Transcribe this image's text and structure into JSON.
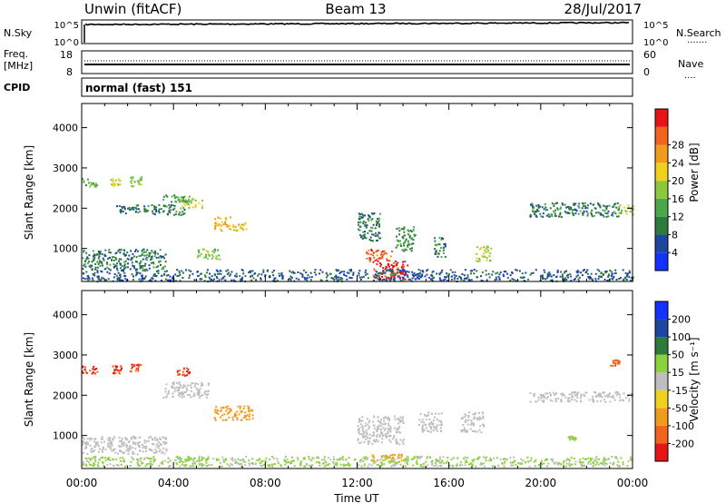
{
  "header": {
    "station": "Unwin (fitACF)",
    "beam": "Beam 13",
    "date": "28/Jul/2017"
  },
  "noise_panel": {
    "left_label": "N.Sky",
    "left_ticks": [
      "10^5",
      "10^0"
    ],
    "right_ticks": [
      "10^5",
      "10^0"
    ],
    "right_label": "N.Search",
    "right_legend": "......."
  },
  "freq_panel": {
    "left_label_1": "Freq.",
    "left_label_2": "[MHz]",
    "left_ticks": [
      "18",
      "8"
    ],
    "right_ticks": [
      "60",
      "0"
    ],
    "right_label": "Nave",
    "right_legend": "...."
  },
  "cpid_panel": {
    "left_label": "CPID",
    "text": "normal (fast) 151"
  },
  "time_axis": {
    "label": "Time UT",
    "tick_labels": [
      "00:00",
      "04:00",
      "08:00",
      "12:00",
      "16:00",
      "20:00",
      "00:00"
    ]
  },
  "colors": {
    "power": [
      "#1432ff",
      "#1e46a0",
      "#2c7a3c",
      "#4aa84a",
      "#8cc83c",
      "#f0d21e",
      "#f09b1e",
      "#f0641e",
      "#e61414"
    ],
    "velocity": [
      "#e61414",
      "#f0641e",
      "#f09b1e",
      "#f0d21e",
      "#bebebe",
      "#8cd23c",
      "#2c7a3c",
      "#1e46a0",
      "#1432ff"
    ]
  },
  "chart_data": [
    {
      "type": "heatmap",
      "panel": "power",
      "ylabel": "Slant Range [km]",
      "xlabel": "",
      "ylim": [
        180,
        4600
      ],
      "yticks": [
        1000,
        2000,
        3000,
        4000
      ],
      "x_ticks": [
        "00:00",
        "04:00",
        "08:00",
        "12:00",
        "16:00",
        "20:00",
        "00:00"
      ],
      "colorbar": {
        "label": "Power [dB]",
        "tick_labels": [
          "4",
          "8",
          "12",
          "16",
          "20",
          "24",
          "28"
        ],
        "range": [
          0,
          30
        ]
      },
      "regions": [
        {
          "start": "00:00",
          "end": "00:40",
          "range_km": [
            2550,
            2750
          ],
          "value": 12
        },
        {
          "start": "01:15",
          "end": "01:45",
          "range_km": [
            2550,
            2750
          ],
          "value": 16
        },
        {
          "start": "02:05",
          "end": "02:35",
          "range_km": [
            2550,
            2800
          ],
          "value": 14
        },
        {
          "start": "03:30",
          "end": "04:40",
          "range_km": [
            2150,
            2350
          ],
          "value": 10
        },
        {
          "start": "01:30",
          "end": "04:30",
          "range_km": [
            1850,
            2100
          ],
          "value": 8
        },
        {
          "start": "04:15",
          "end": "05:15",
          "range_km": [
            2000,
            2250
          ],
          "value": 16
        },
        {
          "start": "05:45",
          "end": "06:30",
          "range_km": [
            1450,
            1800
          ],
          "value": 20
        },
        {
          "start": "06:30",
          "end": "07:15",
          "range_km": [
            1450,
            1650
          ],
          "value": 18
        },
        {
          "start": "00:00",
          "end": "03:40",
          "range_km": [
            500,
            1000
          ],
          "value": 8
        },
        {
          "start": "05:00",
          "end": "06:00",
          "range_km": [
            750,
            1000
          ],
          "value": 14
        },
        {
          "start": "12:00",
          "end": "13:00",
          "range_km": [
            1200,
            1900
          ],
          "value": 8
        },
        {
          "start": "12:20",
          "end": "13:30",
          "range_km": [
            700,
            1000
          ],
          "value": 26
        },
        {
          "start": "12:40",
          "end": "14:10",
          "range_km": [
            250,
            700
          ],
          "value": 28
        },
        {
          "start": "13:40",
          "end": "14:30",
          "range_km": [
            950,
            1550
          ],
          "value": 10
        },
        {
          "start": "15:20",
          "end": "15:50",
          "range_km": [
            800,
            1300
          ],
          "value": 8
        },
        {
          "start": "17:10",
          "end": "17:50",
          "range_km": [
            700,
            1100
          ],
          "value": 16
        },
        {
          "start": "19:30",
          "end": "23:30",
          "range_km": [
            1800,
            2150
          ],
          "value": 8
        },
        {
          "start": "23:20",
          "end": "24:00",
          "range_km": [
            1850,
            2100
          ],
          "value": 16
        },
        {
          "start": "00:00",
          "end": "24:00",
          "range_km": [
            200,
            500
          ],
          "value": 6
        }
      ]
    },
    {
      "type": "heatmap",
      "panel": "velocity",
      "ylabel": "Slant Range [km]",
      "xlabel": "Time UT",
      "ylim": [
        180,
        4600
      ],
      "yticks": [
        1000,
        2000,
        3000,
        4000
      ],
      "x_ticks": [
        "00:00",
        "04:00",
        "08:00",
        "12:00",
        "16:00",
        "20:00",
        "00:00"
      ],
      "colorbar": {
        "label": "Velocity [m s⁻¹]",
        "tick_labels": [
          "200",
          "100",
          "50",
          "15",
          "-15",
          "-50",
          "-100",
          "-200"
        ],
        "range": [
          -250,
          250
        ]
      },
      "regions": [
        {
          "start": "00:00",
          "end": "00:40",
          "range_km": [
            2550,
            2750
          ],
          "value": -200
        },
        {
          "start": "01:15",
          "end": "01:45",
          "range_km": [
            2550,
            2750
          ],
          "value": -200
        },
        {
          "start": "02:05",
          "end": "02:35",
          "range_km": [
            2550,
            2800
          ],
          "value": -200
        },
        {
          "start": "04:00",
          "end": "04:40",
          "range_km": [
            2500,
            2700
          ],
          "value": -200
        },
        {
          "start": "03:30",
          "end": "05:30",
          "range_km": [
            1950,
            2350
          ],
          "value": 0
        },
        {
          "start": "05:45",
          "end": "07:30",
          "range_km": [
            1400,
            1750
          ],
          "value": -80
        },
        {
          "start": "00:00",
          "end": "03:40",
          "range_km": [
            550,
            1000
          ],
          "value": 0
        },
        {
          "start": "12:00",
          "end": "14:00",
          "range_km": [
            800,
            1500
          ],
          "value": 0
        },
        {
          "start": "14:40",
          "end": "15:40",
          "range_km": [
            1100,
            1600
          ],
          "value": 0
        },
        {
          "start": "16:30",
          "end": "17:30",
          "range_km": [
            1100,
            1600
          ],
          "value": 0
        },
        {
          "start": "12:30",
          "end": "14:00",
          "range_km": [
            350,
            550
          ],
          "value": -60
        },
        {
          "start": "19:30",
          "end": "24:00",
          "range_km": [
            1850,
            2100
          ],
          "value": 0
        },
        {
          "start": "23:00",
          "end": "23:25",
          "range_km": [
            2750,
            2900
          ],
          "value": -120
        },
        {
          "start": "21:10",
          "end": "21:30",
          "range_km": [
            900,
            1000
          ],
          "value": 20
        },
        {
          "start": "00:00",
          "end": "24:00",
          "range_km": [
            250,
            500
          ],
          "value": 20
        }
      ]
    }
  ]
}
